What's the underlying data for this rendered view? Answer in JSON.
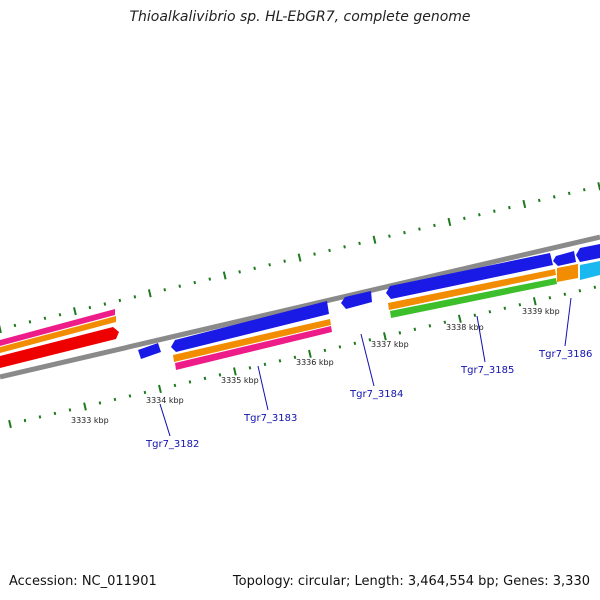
{
  "title": "Thioalkalivibrio sp. HL-EbGR7, complete genome",
  "footer": {
    "accession": "Accession: NC_011901",
    "summary": "Topology: circular; Length: 3,464,554 bp; Genes: 3,330"
  },
  "colors": {
    "backbone": "#8a8a8a",
    "cds": "#1a1ae6",
    "cds_light": "#1ab8f0",
    "orange": "#f28c00",
    "magenta": "#ee1c88",
    "green": "#3cbf2a",
    "red": "#ee0000",
    "ticks": "#1e7a1e",
    "labels": "#1010b0"
  },
  "kbp_labels": [
    "3333 kbp",
    "3334 kbp",
    "3335 kbp",
    "3336 kbp",
    "3337 kbp",
    "3338 kbp",
    "3339 kbp"
  ],
  "gene_labels": [
    "Tgr7_3182",
    "Tgr7_3183",
    "Tgr7_3184",
    "Tgr7_3185",
    "Tgr7_3186"
  ]
}
